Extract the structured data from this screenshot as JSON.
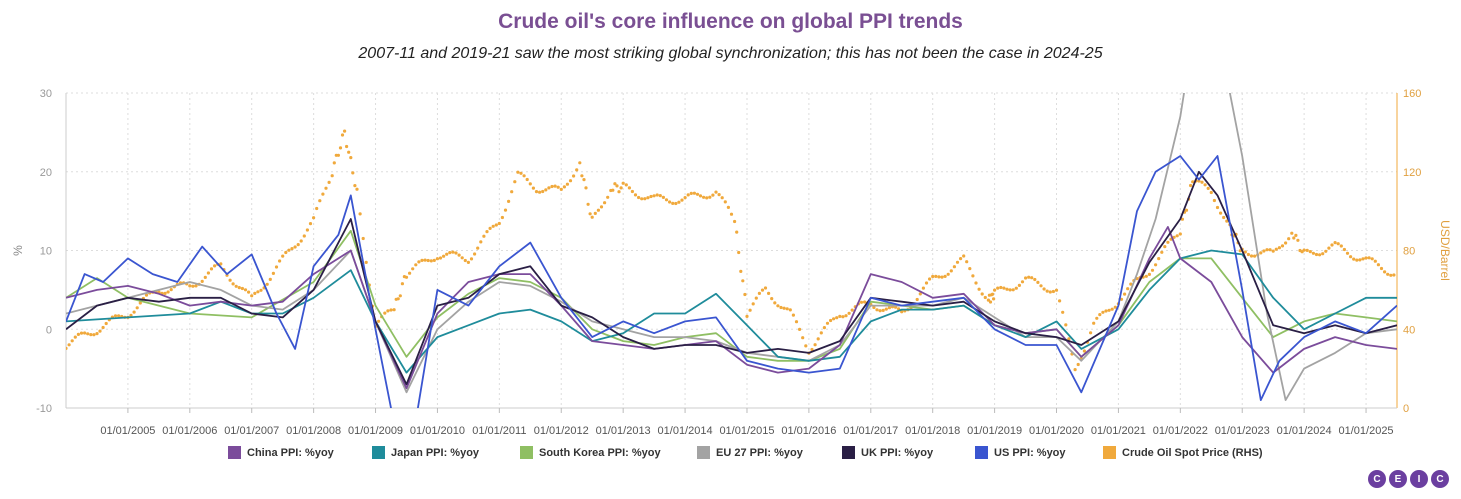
{
  "title": "Crude oil's core influence on global PPI trends",
  "subtitle": "2007-11 and 2019-21 saw the most striking global synchronization; this has not been the case in 2024-25",
  "logo": [
    "C",
    "E",
    "I",
    "C"
  ],
  "colors": {
    "title": "#7a4f93",
    "china": "#7b4c9b",
    "japan": "#1f8c9b",
    "korea": "#8fbf63",
    "eu27": "#a3a3a3",
    "uk": "#2a1f45",
    "us": "#3a55d0",
    "oil": "#f0a93c"
  },
  "chart_data": {
    "type": "line",
    "ylabel": "%",
    "y2label": "USD/Barrel",
    "ylim": [
      -10,
      30
    ],
    "y2lim": [
      0,
      160
    ],
    "yticks": [
      "-10",
      "0",
      "10",
      "20",
      "30"
    ],
    "y2ticks": [
      "0",
      "40",
      "80",
      "120",
      "160"
    ],
    "xlim": [
      2004.0,
      2025.5
    ],
    "xticks": [
      "01/01/2005",
      "01/01/2006",
      "01/01/2007",
      "01/01/2008",
      "01/01/2009",
      "01/01/2010",
      "01/01/2011",
      "01/01/2012",
      "01/01/2013",
      "01/01/2014",
      "01/01/2015",
      "01/01/2016",
      "01/01/2017",
      "01/01/2018",
      "01/01/2019",
      "01/01/2020",
      "01/01/2021",
      "01/01/2022",
      "01/01/2023",
      "01/01/2024",
      "01/01/2025"
    ],
    "grid": true,
    "legend_position": "bottom",
    "series": [
      {
        "key": "china",
        "name": "China PPI: %yoy",
        "axis": "left",
        "style": "line",
        "x": [
          2004.0,
          2004.5,
          2005.0,
          2005.5,
          2006.0,
          2006.5,
          2007.0,
          2007.5,
          2008.0,
          2008.6,
          2009.0,
          2009.5,
          2010.0,
          2010.5,
          2011.0,
          2011.5,
          2012.0,
          2012.5,
          2013.0,
          2013.5,
          2014.0,
          2014.5,
          2015.0,
          2015.5,
          2016.0,
          2016.5,
          2017.0,
          2017.5,
          2018.0,
          2018.5,
          2019.0,
          2019.5,
          2020.0,
          2020.4,
          2021.0,
          2021.5,
          2021.8,
          2022.0,
          2022.5,
          2023.0,
          2023.5,
          2024.0,
          2024.5,
          2025.0,
          2025.5
        ],
        "y": [
          4,
          5,
          5.5,
          4.5,
          3,
          3.5,
          3,
          3.5,
          7,
          10,
          1,
          -7.5,
          2,
          6,
          7,
          7,
          3,
          -1.5,
          -2,
          -2.5,
          -2,
          -1.5,
          -4.5,
          -5.5,
          -5,
          -2,
          7,
          6,
          4,
          4.5,
          0.5,
          -0.5,
          0,
          -3.5,
          0.5,
          9,
          13,
          9,
          6,
          -1,
          -5.5,
          -2.5,
          -1,
          -2,
          -2.5
        ]
      },
      {
        "key": "japan",
        "name": "Japan PPI: %yoy",
        "axis": "left",
        "style": "line",
        "x": [
          2004.0,
          2005.0,
          2006.0,
          2006.5,
          2007.0,
          2007.5,
          2008.0,
          2008.6,
          2009.0,
          2009.5,
          2010.0,
          2010.5,
          2011.0,
          2011.5,
          2012.0,
          2012.5,
          2013.0,
          2013.5,
          2014.0,
          2014.5,
          2015.0,
          2015.5,
          2016.0,
          2016.5,
          2017.0,
          2017.5,
          2018.0,
          2018.5,
          2019.0,
          2019.5,
          2020.0,
          2020.4,
          2021.0,
          2021.5,
          2022.0,
          2022.5,
          2023.0,
          2023.5,
          2024.0,
          2024.5,
          2025.0,
          2025.5
        ],
        "y": [
          1,
          1.5,
          2,
          3.5,
          2,
          2,
          4,
          7.5,
          1,
          -5.5,
          -1,
          0.5,
          2,
          2.5,
          1,
          -1.5,
          -0.5,
          2,
          2,
          4.5,
          0.5,
          -3.5,
          -4,
          -3.5,
          1,
          2.5,
          2.5,
          3,
          0.5,
          -1,
          1,
          -2.5,
          0,
          5,
          9,
          10,
          9.5,
          4,
          0,
          2,
          4,
          4
        ]
      },
      {
        "key": "korea",
        "name": "South Korea PPI: %yoy",
        "axis": "left",
        "style": "line",
        "x": [
          2004.0,
          2004.5,
          2005.0,
          2006.0,
          2007.0,
          2008.0,
          2008.6,
          2009.0,
          2009.5,
          2010.0,
          2010.5,
          2011.0,
          2011.5,
          2012.0,
          2012.5,
          2013.0,
          2013.5,
          2014.0,
          2014.5,
          2015.0,
          2015.5,
          2016.0,
          2016.5,
          2017.0,
          2017.5,
          2018.0,
          2018.5,
          2019.0,
          2019.5,
          2020.0,
          2020.4,
          2021.0,
          2021.5,
          2022.0,
          2022.5,
          2023.0,
          2023.5,
          2024.0,
          2024.5,
          2025.0,
          2025.5
        ],
        "y": [
          4,
          6.5,
          4,
          2,
          1.5,
          6,
          12.5,
          3,
          -3.5,
          1.5,
          4.5,
          6.5,
          6,
          4,
          0,
          -1.5,
          -2,
          -1,
          -0.5,
          -3.5,
          -4,
          -4,
          -2.5,
          3.5,
          3,
          2.5,
          3,
          0.5,
          -0.5,
          0,
          -3.5,
          0.5,
          6,
          9,
          9,
          4,
          -1,
          1,
          2,
          1.5,
          1
        ]
      },
      {
        "key": "eu27",
        "name": "EU 27 PPI: %yoy",
        "axis": "left",
        "style": "line",
        "x": [
          2004.0,
          2004.5,
          2005.0,
          2005.5,
          2006.0,
          2006.5,
          2007.0,
          2007.5,
          2008.0,
          2008.6,
          2009.0,
          2009.5,
          2010.0,
          2010.5,
          2011.0,
          2011.5,
          2012.0,
          2012.5,
          2013.0,
          2013.5,
          2014.0,
          2014.5,
          2015.0,
          2015.5,
          2016.0,
          2016.5,
          2017.0,
          2017.5,
          2018.0,
          2018.5,
          2019.0,
          2019.5,
          2020.0,
          2020.4,
          2021.0,
          2021.3,
          2021.6,
          2022.0,
          2022.2,
          2022.5,
          2022.8,
          2023.0,
          2023.4,
          2023.7,
          2024.0,
          2024.5,
          2025.0,
          2025.5
        ],
        "y": [
          2,
          3,
          4,
          5,
          6,
          5,
          3,
          2.5,
          5,
          10,
          1,
          -8,
          0,
          3.5,
          6,
          5.5,
          3.5,
          1,
          0,
          -1,
          -1,
          -1.5,
          -3,
          -3.5,
          -4,
          -2,
          3,
          3,
          3,
          4,
          1.5,
          -1,
          -1,
          -4,
          1,
          7,
          14,
          27,
          37,
          36,
          30,
          22,
          2,
          -9,
          -5,
          -3,
          -0.5,
          0
        ]
      },
      {
        "key": "uk",
        "name": "UK PPI: %yoy",
        "axis": "left",
        "style": "line",
        "x": [
          2004.0,
          2004.5,
          2005.0,
          2005.5,
          2006.0,
          2006.5,
          2007.0,
          2007.5,
          2008.0,
          2008.6,
          2009.0,
          2009.5,
          2010.0,
          2010.5,
          2011.0,
          2011.5,
          2012.0,
          2012.5,
          2013.0,
          2013.5,
          2014.0,
          2014.5,
          2015.0,
          2015.5,
          2016.0,
          2016.5,
          2017.0,
          2017.5,
          2018.0,
          2018.5,
          2019.0,
          2019.5,
          2020.0,
          2020.4,
          2021.0,
          2021.5,
          2022.0,
          2022.3,
          2022.6,
          2023.0,
          2023.5,
          2024.0,
          2024.5,
          2025.0,
          2025.5
        ],
        "y": [
          0,
          3,
          4,
          3.5,
          4,
          4,
          2,
          1.5,
          5,
          14,
          1,
          -7,
          3,
          4,
          7,
          8,
          3,
          1.5,
          -1,
          -2.5,
          -2,
          -2,
          -3,
          -2.5,
          -3,
          -1.5,
          4,
          3.5,
          3,
          3.5,
          1,
          -0.5,
          -1,
          -2,
          1,
          8.5,
          14,
          20,
          17,
          10,
          0.5,
          -0.5,
          0.5,
          -0.5,
          0.5
        ]
      },
      {
        "key": "us",
        "name": "US PPI: %yoy",
        "axis": "left",
        "style": "line",
        "x": [
          2004.0,
          2004.3,
          2004.6,
          2005.0,
          2005.4,
          2005.8,
          2006.2,
          2006.6,
          2007.0,
          2007.4,
          2007.7,
          2008.0,
          2008.4,
          2008.6,
          2009.0,
          2009.3,
          2009.6,
          2010.0,
          2010.5,
          2011.0,
          2011.5,
          2012.0,
          2012.5,
          2013.0,
          2013.5,
          2014.0,
          2014.5,
          2015.0,
          2015.5,
          2016.0,
          2016.5,
          2017.0,
          2017.5,
          2018.0,
          2018.5,
          2019.0,
          2019.5,
          2020.0,
          2020.4,
          2021.0,
          2021.3,
          2021.6,
          2022.0,
          2022.3,
          2022.6,
          2023.0,
          2023.3,
          2023.6,
          2024.0,
          2024.5,
          2025.0,
          2025.5
        ],
        "y": [
          1,
          7,
          6,
          9,
          7,
          6,
          10.5,
          7,
          9.5,
          2,
          -2.5,
          8,
          12,
          17,
          0,
          -12,
          -14,
          5,
          3,
          8,
          11,
          4,
          -1,
          1,
          -0.5,
          1,
          1.5,
          -4,
          -5,
          -5.5,
          -5,
          4,
          3,
          3.5,
          4,
          0,
          -2,
          -2,
          -8,
          3,
          15,
          20,
          22,
          19,
          22,
          5,
          -9,
          -4,
          -1,
          1,
          -0.5,
          3
        ]
      },
      {
        "key": "oil",
        "name": "Crude Oil Spot Price (RHS)",
        "axis": "right",
        "style": "dots",
        "x": [
          2004.0,
          2004.5,
          2005.0,
          2005.5,
          2006.0,
          2006.5,
          2007.0,
          2007.5,
          2008.0,
          2008.3,
          2008.5,
          2008.7,
          2009.0,
          2009.3,
          2009.5,
          2010.0,
          2010.5,
          2011.0,
          2011.3,
          2011.6,
          2012.0,
          2012.3,
          2012.5,
          2012.8,
          2013.0,
          2013.5,
          2014.0,
          2014.5,
          2014.8,
          2015.0,
          2015.3,
          2015.7,
          2016.0,
          2016.5,
          2017.0,
          2017.5,
          2018.0,
          2018.5,
          2018.9,
          2019.0,
          2019.5,
          2020.0,
          2020.3,
          2020.6,
          2021.0,
          2021.5,
          2022.0,
          2022.2,
          2022.5,
          2022.8,
          2023.0,
          2023.5,
          2023.8,
          2024.0,
          2024.5,
          2025.0,
          2025.5
        ],
        "y": [
          32,
          40,
          48,
          60,
          62,
          72,
          55,
          75,
          95,
          120,
          140,
          110,
          42,
          50,
          68,
          78,
          76,
          95,
          118,
          112,
          110,
          125,
          95,
          112,
          112,
          106,
          106,
          110,
          95,
          48,
          60,
          48,
          30,
          48,
          53,
          48,
          65,
          75,
          55,
          58,
          65,
          60,
          20,
          42,
          55,
          70,
          90,
          115,
          110,
          92,
          80,
          78,
          90,
          78,
          82,
          75,
          68
        ]
      }
    ]
  },
  "legend": [
    {
      "key": "china",
      "label": "China PPI: %yoy"
    },
    {
      "key": "japan",
      "label": "Japan PPI: %yoy"
    },
    {
      "key": "korea",
      "label": "South Korea PPI: %yoy"
    },
    {
      "key": "eu27",
      "label": "EU 27 PPI: %yoy"
    },
    {
      "key": "uk",
      "label": "UK PPI: %yoy"
    },
    {
      "key": "us",
      "label": "US PPI: %yoy"
    },
    {
      "key": "oil",
      "label": "Crude Oil Spot Price (RHS)"
    }
  ]
}
